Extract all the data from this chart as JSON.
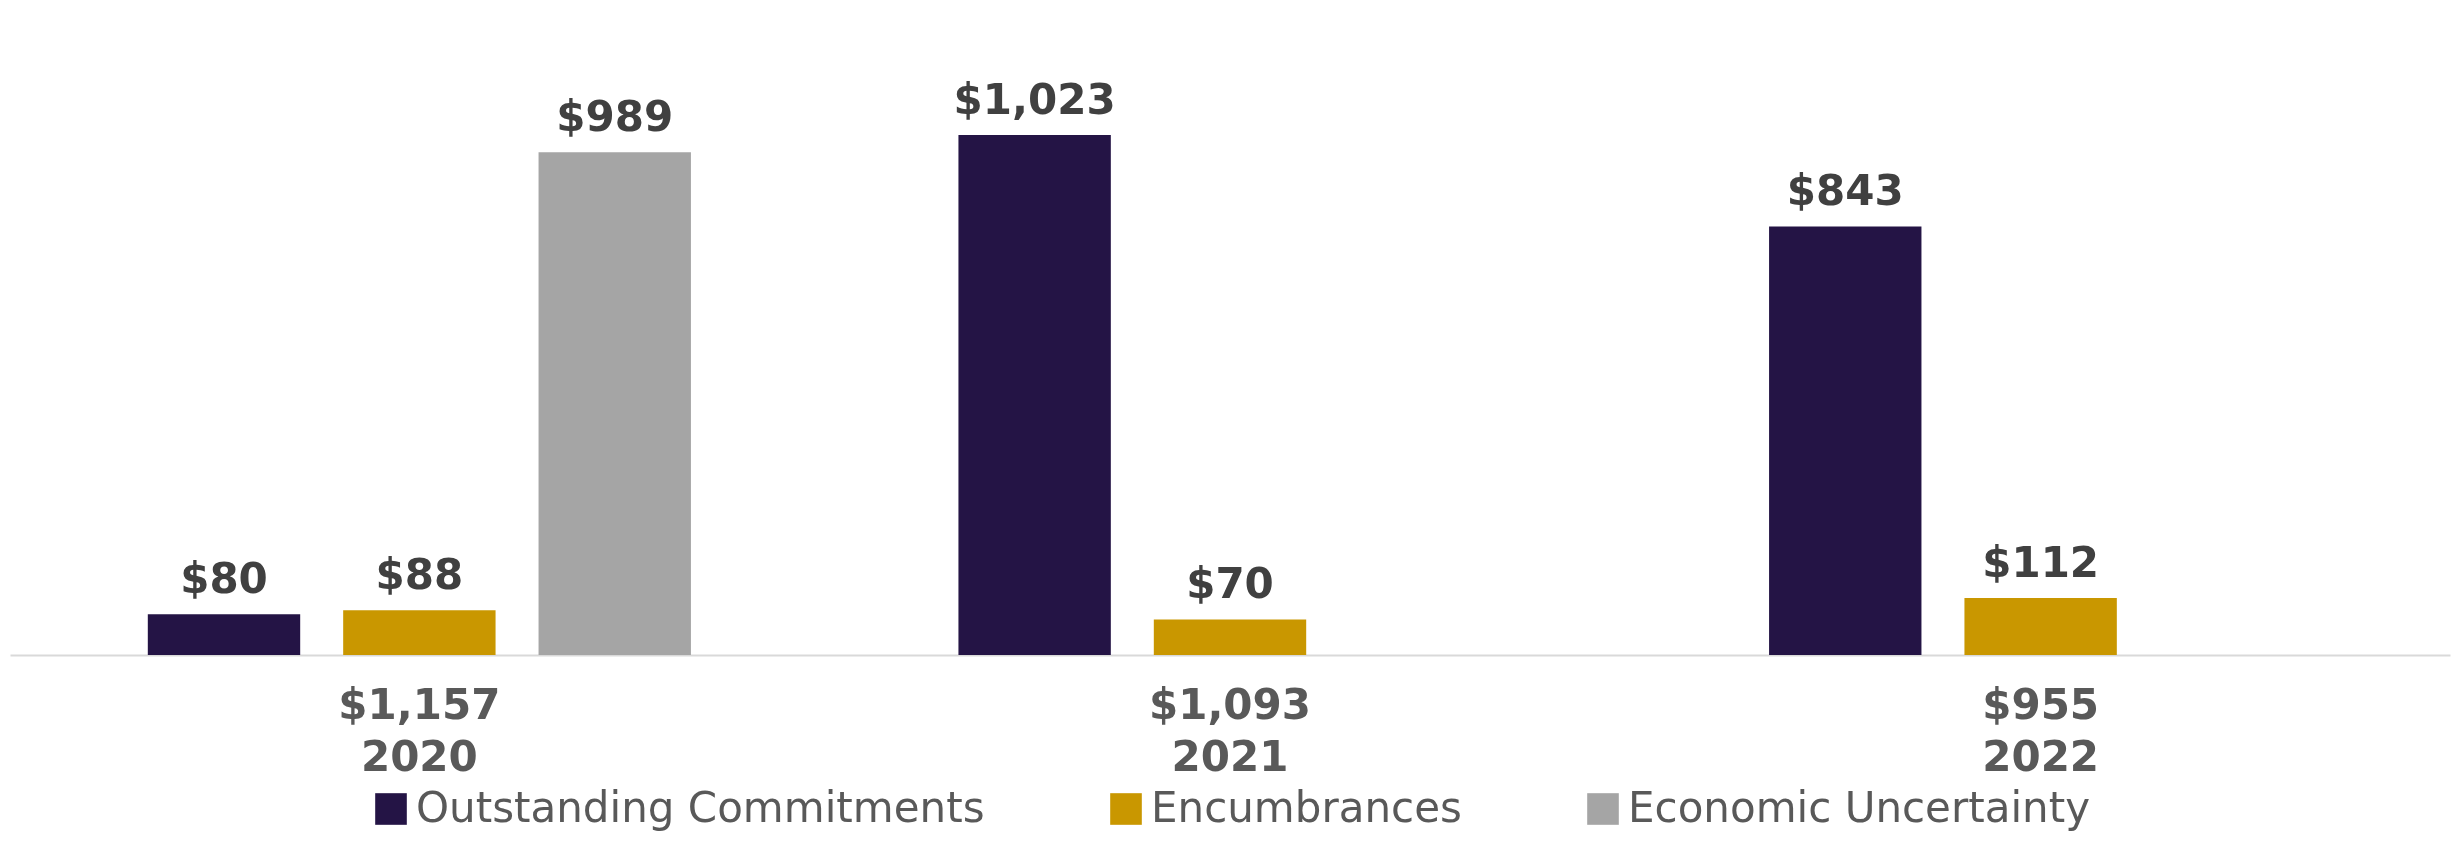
{
  "chart_data": {
    "type": "bar",
    "categories": [
      "$1,157\n2020",
      "$1,093\n2021",
      "$955\n2022"
    ],
    "series": [
      {
        "name": "Outstanding Commitments",
        "color": "#241445",
        "values": [
          80,
          1023,
          843
        ],
        "value_labels": [
          "$80",
          "$1,023",
          "$843"
        ]
      },
      {
        "name": "Encumbrances",
        "color": "#c99700",
        "values": [
          88,
          70,
          112
        ],
        "value_labels": [
          "$88",
          "$70",
          "$112"
        ]
      },
      {
        "name": "Economic Uncertainty",
        "color": "#a5a5a5",
        "values": [
          989,
          null,
          null
        ],
        "value_labels": [
          "$989",
          null,
          null
        ]
      }
    ],
    "legend": "bottom",
    "grid": false
  }
}
